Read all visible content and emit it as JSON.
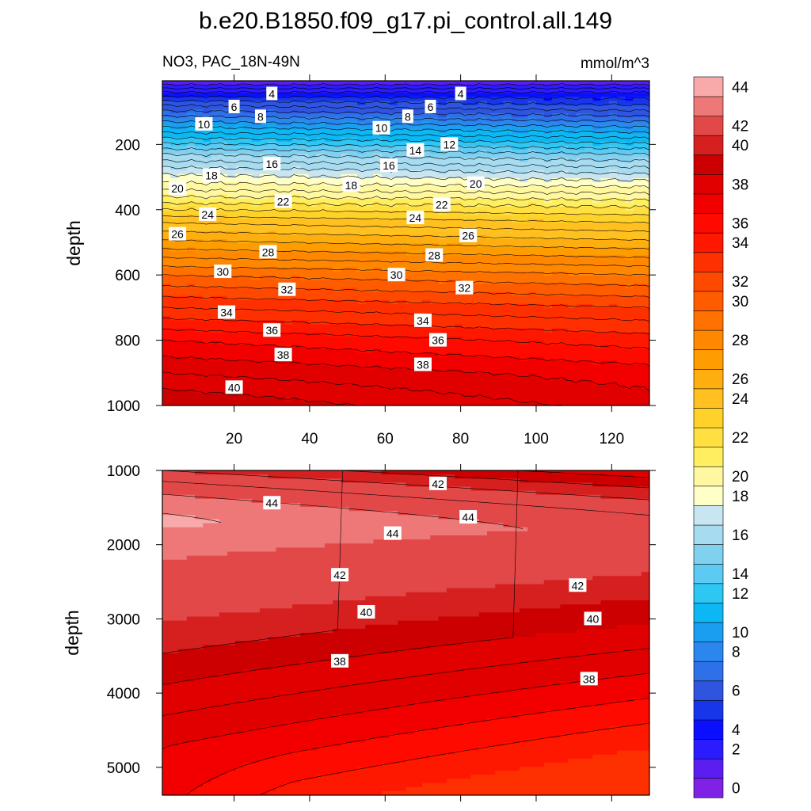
{
  "chart_data": {
    "type": "contour",
    "title": "b.e20.B1850.f09_g17.pi_control.all.149",
    "variable_label": "NO3, PAC_18N-49N",
    "units_label": "mmol/m^3",
    "xlabel": "",
    "ylabel": "depth",
    "xlim": [
      1,
      130
    ],
    "x_ticks": [
      20,
      40,
      60,
      80,
      100,
      120
    ],
    "colorbar": {
      "levels": [
        0,
        2,
        4,
        6,
        8,
        10,
        12,
        14,
        16,
        18,
        20,
        22,
        24,
        26,
        28,
        30,
        32,
        34,
        36,
        38,
        40,
        42,
        44
      ],
      "colors": [
        "#7f22e5",
        "#5a1ff0",
        "#2a1cff",
        "#0a10ff",
        "#1736ea",
        "#2e54e0",
        "#2e70e8",
        "#2b86ee",
        "#1a9ef0",
        "#0cb8f4",
        "#2ec6f2",
        "#5ccaf2",
        "#80d0f0",
        "#a6dbf0",
        "#c8e6f2",
        "#ffffc8",
        "#fff8a0",
        "#ffee60",
        "#ffe040",
        "#ffd22a",
        "#ffc020",
        "#ffae10",
        "#ff9c00",
        "#ff8800",
        "#ff7200",
        "#ff5c00",
        "#ff4800",
        "#ff3000",
        "#ff1800",
        "#ff0a00",
        "#f20000",
        "#e00000",
        "#cc0000",
        "#d62020",
        "#e24848",
        "#ee7878",
        "#f8aaaa"
      ]
    },
    "panels": [
      {
        "name": "upper",
        "ylim": [
          1000,
          5
        ],
        "y_ticks": [
          200,
          400,
          600,
          800,
          1000
        ],
        "contour_labels": [
          {
            "value": 4,
            "x": 30,
            "y": 45
          },
          {
            "value": 4,
            "x": 80,
            "y": 45
          },
          {
            "value": 6,
            "x": 20,
            "y": 85
          },
          {
            "value": 6,
            "x": 72,
            "y": 85
          },
          {
            "value": 8,
            "x": 27,
            "y": 115
          },
          {
            "value": 8,
            "x": 66,
            "y": 115
          },
          {
            "value": 10,
            "x": 12,
            "y": 138
          },
          {
            "value": 10,
            "x": 59,
            "y": 150
          },
          {
            "value": 12,
            "x": 77,
            "y": 200
          },
          {
            "value": 14,
            "x": 68,
            "y": 218
          },
          {
            "value": 16,
            "x": 30,
            "y": 260
          },
          {
            "value": 16,
            "x": 61,
            "y": 265
          },
          {
            "value": 18,
            "x": 14,
            "y": 295
          },
          {
            "value": 18,
            "x": 51,
            "y": 325
          },
          {
            "value": 20,
            "x": 5,
            "y": 335
          },
          {
            "value": 20,
            "x": 84,
            "y": 320
          },
          {
            "value": 22,
            "x": 33,
            "y": 375
          },
          {
            "value": 22,
            "x": 75,
            "y": 385
          },
          {
            "value": 24,
            "x": 13,
            "y": 415
          },
          {
            "value": 24,
            "x": 68,
            "y": 425
          },
          {
            "value": 26,
            "x": 5,
            "y": 475
          },
          {
            "value": 26,
            "x": 82,
            "y": 480
          },
          {
            "value": 28,
            "x": 29,
            "y": 530
          },
          {
            "value": 28,
            "x": 73,
            "y": 540
          },
          {
            "value": 30,
            "x": 17,
            "y": 590
          },
          {
            "value": 30,
            "x": 63,
            "y": 600
          },
          {
            "value": 32,
            "x": 34,
            "y": 645
          },
          {
            "value": 32,
            "x": 81,
            "y": 640
          },
          {
            "value": 34,
            "x": 18,
            "y": 715
          },
          {
            "value": 34,
            "x": 70,
            "y": 740
          },
          {
            "value": 36,
            "x": 30,
            "y": 770
          },
          {
            "value": 36,
            "x": 74,
            "y": 800
          },
          {
            "value": 38,
            "x": 33,
            "y": 845
          },
          {
            "value": 38,
            "x": 70,
            "y": 875
          },
          {
            "value": 40,
            "x": 20,
            "y": 945
          }
        ]
      },
      {
        "name": "lower",
        "ylim": [
          5375,
          1000
        ],
        "y_ticks": [
          1000,
          2000,
          3000,
          4000,
          5000
        ],
        "contour_labels": [
          {
            "value": 42,
            "x": 74,
            "y": 1180
          },
          {
            "value": 44,
            "x": 30,
            "y": 1440
          },
          {
            "value": 44,
            "x": 82,
            "y": 1630
          },
          {
            "value": 44,
            "x": 62,
            "y": 1850
          },
          {
            "value": 42,
            "x": 48,
            "y": 2410
          },
          {
            "value": 42,
            "x": 111,
            "y": 2550
          },
          {
            "value": 40,
            "x": 55,
            "y": 2910
          },
          {
            "value": 40,
            "x": 115,
            "y": 3000
          },
          {
            "value": 38,
            "x": 48,
            "y": 3570
          },
          {
            "value": 38,
            "x": 114,
            "y": 3810
          }
        ]
      }
    ]
  }
}
